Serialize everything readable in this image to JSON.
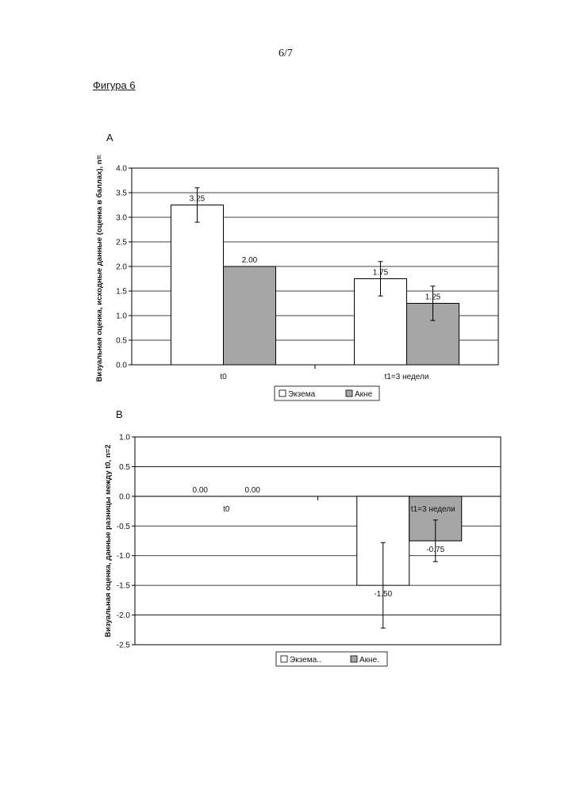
{
  "page": {
    "number": "6/7",
    "figure_title": "Фигура 6"
  },
  "chart_data": [
    {
      "panel": "A",
      "type": "bar",
      "categories": [
        "t0",
        "t1=3 недели"
      ],
      "series": [
        {
          "name": "Экзема",
          "values": [
            3.25,
            1.75
          ],
          "errors": [
            0.35,
            0.35
          ],
          "labels": [
            "3.25",
            "1.75"
          ],
          "color": "#ffffff"
        },
        {
          "name": "Акне",
          "values": [
            2.0,
            1.25
          ],
          "errors": [
            0,
            0.35
          ],
          "labels": [
            "2.00",
            "1.25"
          ],
          "color": "#a6a6a6"
        }
      ],
      "ylabel": "Визуальная оценка, исходные данные (оценка в баллах), n=2",
      "ylim": [
        0,
        4
      ],
      "yticks": [
        "0.0",
        "0.5",
        "1.0",
        "1.5",
        "2.0",
        "2.5",
        "3.0",
        "3.5",
        "4.0"
      ],
      "grid": true,
      "legend": "bottom"
    },
    {
      "panel": "B",
      "type": "bar",
      "categories": [
        "t0",
        "t1=3 недели"
      ],
      "series": [
        {
          "name": "Экзема..",
          "values": [
            0.0,
            -1.5
          ],
          "errors": [
            0,
            0.72
          ],
          "labels": [
            "0.00",
            "-1.50"
          ],
          "color": "#ffffff"
        },
        {
          "name": "Акне.",
          "values": [
            0.0,
            -0.75
          ],
          "errors": [
            0,
            0.35
          ],
          "labels": [
            "0.00",
            "-0.75"
          ],
          "color": "#a6a6a6"
        }
      ],
      "ylabel": "Визуальная оценка, данные разницы между t0, n=2",
      "ylim": [
        -2.5,
        1.0
      ],
      "yticks": [
        "1.0",
        "0.5",
        "0.0",
        "-0.5",
        "-1.0",
        "-1.5",
        "-2.0",
        "-2.5"
      ],
      "grid": true,
      "legend": "bottom"
    }
  ]
}
